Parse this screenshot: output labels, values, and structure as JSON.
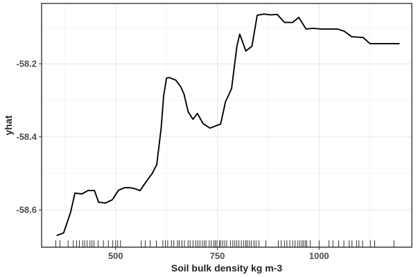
{
  "chart_data": {
    "type": "line",
    "title": "",
    "xlabel": "Soil bulk density kg m-3",
    "ylabel": "yhat",
    "xlim": [
      318,
      1228
    ],
    "ylim": [
      -58.702,
      -58.035
    ],
    "x_ticks": [
      500,
      750,
      1000
    ],
    "x_tick_labels": [
      "500",
      "750",
      "1000"
    ],
    "y_ticks": [
      -58.2,
      -58.4,
      -58.6
    ],
    "y_tick_labels": [
      "-58.2",
      "-58.4",
      "-58.6"
    ],
    "grid": true,
    "legend": "none",
    "series": [
      {
        "x": [
          355,
          372,
          389,
          400,
          417,
          432,
          448,
          458,
          475,
          492,
          507,
          522,
          535,
          548,
          560,
          568,
          578,
          590,
          601,
          612,
          618,
          625,
          632,
          648,
          660,
          668,
          678,
          690,
          701,
          715,
          732,
          746,
          758,
          770,
          785,
          798,
          805,
          820,
          835,
          848,
          865,
          880,
          897,
          915,
          935,
          950,
          968,
          985,
          1005,
          1025,
          1045,
          1062,
          1080,
          1093,
          1108,
          1125,
          1140,
          1160,
          1180,
          1198
        ],
        "y": [
          -58.67,
          -58.663,
          -58.607,
          -58.554,
          -58.556,
          -58.547,
          -58.547,
          -58.579,
          -58.581,
          -58.572,
          -58.546,
          -58.539,
          -58.539,
          -58.542,
          -58.547,
          -58.534,
          -58.518,
          -58.5,
          -58.476,
          -58.375,
          -58.288,
          -58.239,
          -58.238,
          -58.245,
          -58.263,
          -58.283,
          -58.331,
          -58.352,
          -58.336,
          -58.364,
          -58.376,
          -58.37,
          -58.365,
          -58.304,
          -58.268,
          -58.152,
          -58.119,
          -58.165,
          -58.152,
          -58.067,
          -58.064,
          -58.066,
          -58.065,
          -58.087,
          -58.087,
          -58.073,
          -58.105,
          -58.103,
          -58.105,
          -58.105,
          -58.105,
          -58.111,
          -58.126,
          -58.127,
          -58.128,
          -58.145,
          -58.145,
          -58.145,
          -58.145,
          -58.145
        ]
      }
    ],
    "rug": [
      353,
      363,
      383,
      396,
      404,
      411,
      419,
      424,
      430,
      437,
      442,
      447,
      457,
      470,
      482,
      493,
      500,
      505,
      512,
      563,
      573,
      585,
      600,
      616,
      622,
      628,
      637,
      643,
      652,
      656,
      663,
      669,
      678,
      683,
      690,
      697,
      702,
      707,
      713,
      718,
      722,
      730,
      735,
      741,
      745,
      749,
      755,
      758,
      763,
      768,
      773,
      782,
      788,
      793,
      798,
      803,
      809,
      815,
      820,
      823,
      828,
      833,
      840,
      845,
      852,
      869,
      900,
      907,
      915,
      921,
      928,
      935,
      941,
      948,
      953,
      958,
      962,
      966,
      970,
      978,
      1000,
      1024,
      1034,
      1048,
      1061,
      1074,
      1081,
      1092,
      1098,
      1107,
      1126,
      1137,
      1184
    ]
  }
}
